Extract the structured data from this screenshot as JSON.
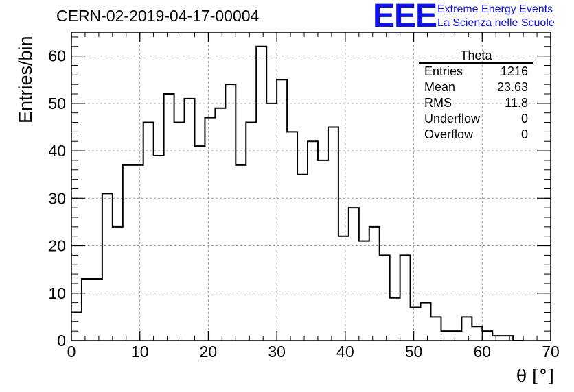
{
  "chart_data": {
    "type": "histogram",
    "title": "CERN-02-2019-04-17-00004",
    "xlabel": "θ [°]",
    "ylabel": "Entries/bin",
    "xlim": [
      0,
      70
    ],
    "ylim": [
      0,
      65
    ],
    "x_ticks": [
      "0",
      "10",
      "20",
      "30",
      "40",
      "50",
      "60",
      "70"
    ],
    "y_ticks": [
      "0",
      "10",
      "20",
      "30",
      "40",
      "50",
      "60"
    ],
    "grid": true,
    "bin_width": 1.5,
    "bin_start": 0,
    "values": [
      6,
      13,
      13,
      31,
      24,
      37,
      37,
      46,
      39,
      52,
      46,
      51,
      41,
      47,
      49,
      54,
      37,
      46,
      62,
      50,
      55,
      44,
      35,
      42,
      38,
      45,
      22,
      28,
      21,
      24,
      18,
      9,
      18,
      7,
      8,
      5,
      2,
      2,
      5,
      3,
      2,
      1,
      1,
      0
    ],
    "line_color": "#000000",
    "stats_box": {
      "title": "Theta",
      "rows": [
        {
          "label": "Entries",
          "value": "1216"
        },
        {
          "label": "Mean",
          "value": "23.63"
        },
        {
          "label": "RMS",
          "value": "11.8"
        },
        {
          "label": "Underflow",
          "value": "0"
        },
        {
          "label": "Overflow",
          "value": "0"
        }
      ]
    }
  },
  "logo": {
    "mark": "EEE",
    "line1": "Extreme Energy Events",
    "line2": "La Scienza nelle Scuole",
    "color": "#1010e8"
  }
}
